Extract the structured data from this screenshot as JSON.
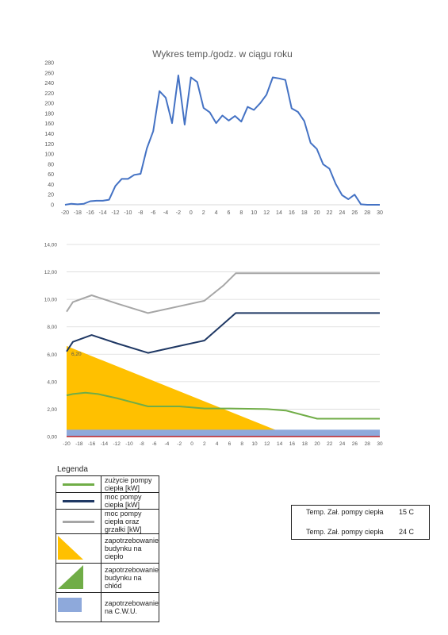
{
  "chart_data": [
    {
      "type": "line",
      "title": "Wykres temp./godz. w ciągu roku",
      "xlabel": "",
      "ylabel": "",
      "xlim": [
        -20,
        30
      ],
      "ylim": [
        0,
        280
      ],
      "x_ticks": [
        -20,
        -18,
        -16,
        -14,
        -12,
        -10,
        -8,
        -6,
        -4,
        -2,
        0,
        2,
        4,
        6,
        8,
        10,
        12,
        14,
        16,
        18,
        20,
        22,
        24,
        26,
        28,
        30
      ],
      "y_ticks": [
        0,
        20,
        40,
        60,
        80,
        100,
        120,
        140,
        160,
        180,
        200,
        220,
        240,
        260,
        280
      ],
      "grid": false,
      "color": "#4472C4",
      "x": [
        -20,
        -19,
        -18,
        -17,
        -16,
        -15,
        -14,
        -13,
        -12,
        -11,
        -10,
        -9,
        -8,
        -7,
        -6,
        -5,
        -4,
        -3,
        -2,
        -1,
        0,
        1,
        2,
        3,
        4,
        5,
        6,
        7,
        8,
        9,
        10,
        11,
        12,
        13,
        14,
        15,
        16,
        17,
        18,
        19,
        20,
        21,
        22,
        23,
        24,
        25,
        26,
        27,
        28,
        29,
        30
      ],
      "y": [
        0,
        2,
        1,
        2,
        7,
        8,
        8,
        10,
        37,
        51,
        51,
        59,
        61,
        111,
        145,
        224,
        211,
        161,
        255,
        158,
        251,
        242,
        191,
        182,
        161,
        176,
        166,
        175,
        164,
        193,
        187,
        200,
        217,
        251,
        249,
        246,
        190,
        183,
        165,
        122,
        110,
        80,
        71,
        41,
        19,
        11,
        20,
        1,
        0,
        0,
        0
      ]
    },
    {
      "type": "line",
      "title": "",
      "xlabel": "",
      "ylabel": "",
      "xlim": [
        -20,
        30
      ],
      "ylim": [
        0,
        14
      ],
      "x_ticks": [
        -20,
        -18,
        -16,
        -14,
        -12,
        -10,
        -8,
        -6,
        -4,
        -2,
        0,
        2,
        4,
        6,
        8,
        10,
        12,
        14,
        16,
        18,
        20,
        22,
        24,
        26,
        28,
        30
      ],
      "y_ticks": [
        "0,00",
        "2,00",
        "4,00",
        "6,00",
        "8,00",
        "10,00",
        "12,00",
        "14,00"
      ],
      "grid": true,
      "annotation": "6,20",
      "series": [
        {
          "name": "moc pompy ciepła oraz grzałki [kW]",
          "color": "#A6A6A6",
          "x": [
            -20,
            -19,
            -16,
            -12,
            -7,
            -2,
            2,
            5,
            7,
            9,
            30
          ],
          "y": [
            9.1,
            9.8,
            10.3,
            9.7,
            9.0,
            9.5,
            9.9,
            11.0,
            11.9,
            11.9,
            11.9
          ]
        },
        {
          "name": "moc pompy ciepła [kW]",
          "color": "#1F3864",
          "x": [
            -20,
            -19,
            -16,
            -12,
            -7,
            -2,
            2,
            5,
            7,
            9,
            30
          ],
          "y": [
            6.2,
            6.9,
            7.4,
            6.8,
            6.1,
            6.6,
            7.0,
            8.2,
            9.0,
            9.0,
            9.0
          ]
        },
        {
          "name": "zużycie pompy ciepła [kW]",
          "color": "#70AD47",
          "x": [
            -20,
            -19,
            -17,
            -15,
            -12,
            -7,
            -2,
            2,
            6,
            12,
            15,
            20,
            30
          ],
          "y": [
            3.0,
            3.1,
            3.2,
            3.1,
            2.8,
            2.2,
            2.2,
            2.05,
            2.05,
            2.0,
            1.9,
            1.3,
            1.3
          ]
        }
      ],
      "areas": [
        {
          "name": "zapotrzebowanie budynku na ciepło",
          "color": "#FFC000",
          "x": [
            -20,
            16
          ],
          "y": [
            6.6,
            0
          ]
        },
        {
          "name": "zapotrzebowanie na C.W.U.",
          "color": "#8EA9DB",
          "x": [
            -20,
            30
          ],
          "y": [
            0.5,
            0.5
          ]
        }
      ],
      "baseline_color": "#C00000"
    }
  ],
  "legend": {
    "title": "Legenda",
    "items": [
      {
        "label": "zużycie pompy ciepła [kW]",
        "kind": "line",
        "color": "#70AD47"
      },
      {
        "label": "moc pompy ciepła [kW]",
        "kind": "line",
        "color": "#1F3864"
      },
      {
        "label": "moc pompy ciepła oraz grzałki [kW]",
        "kind": "line",
        "color": "#A6A6A6"
      },
      {
        "label": "zapotrzebowanie budynku na ciepło",
        "kind": "triangle-down",
        "color": "#FFC000"
      },
      {
        "label": "zapotrzebowanie budynku na chłód",
        "kind": "triangle-up",
        "color": "#70AD47"
      },
      {
        "label": "zapotrzebowanie na C.W.U.",
        "kind": "rect",
        "color": "#8EA9DB"
      }
    ],
    "temps": [
      {
        "label": "Temp. Zał. pompy ciepła",
        "value": "15  C"
      },
      {
        "label": "Temp. Zał. pompy ciepła",
        "value": "24  C"
      }
    ]
  }
}
